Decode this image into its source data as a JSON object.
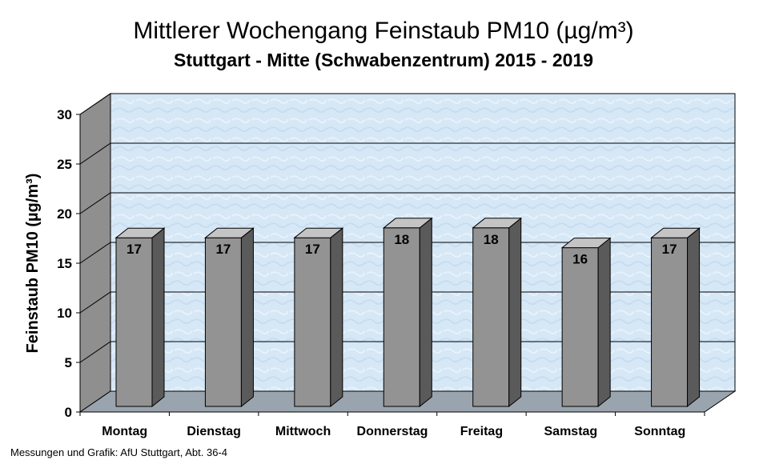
{
  "header": {
    "title": "Mittlerer Wochengang Feinstaub PM10 (µg/m³)",
    "subtitle": "Stuttgart - Mitte (Schwabenzentrum) 2015 - 2019"
  },
  "footer": {
    "source": "Messungen und Grafik: AfU Stuttgart, Abt. 36-4"
  },
  "chart_data": {
    "type": "bar",
    "title": "Mittlerer Wochengang Feinstaub PM10 (µg/m³)",
    "subtitle": "Stuttgart - Mitte (Schwabenzentrum) 2015 - 2019",
    "xlabel": "",
    "ylabel": "Feinstaub PM10 (µg/m³)",
    "categories": [
      "Montag",
      "Dienstag",
      "Mittwoch",
      "Donnerstag",
      "Freitag",
      "Samstag",
      "Sonntag"
    ],
    "values": [
      17,
      17,
      17,
      18,
      18,
      16,
      17
    ],
    "data_labels": [
      "17",
      "17",
      "17",
      "18",
      "18",
      "16",
      "17"
    ],
    "ylim": [
      0,
      30
    ],
    "yticks": [
      "0",
      "5",
      "10",
      "15",
      "20",
      "25",
      "30"
    ],
    "grid": true,
    "legend": "none",
    "three_d": true,
    "colors": {
      "bar_front": "#939393",
      "bar_side": "#5a5a5a",
      "bar_top": "#c4c4c4",
      "back_wall": "#d6e7f6",
      "side_wall": "#8f8f8f",
      "floor": "#9aa4ae",
      "gridline": "#000000"
    }
  }
}
